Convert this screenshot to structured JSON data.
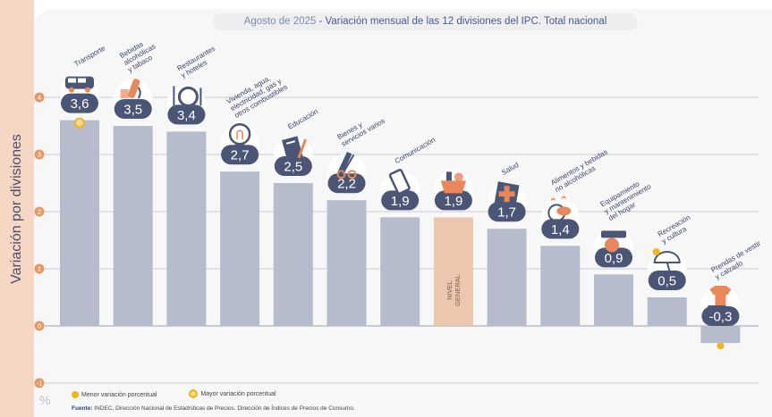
{
  "title": {
    "date": "Agosto de 2025",
    "separator": "-",
    "subtitle": "Variación mensual de las 12 divisiones del IPC. Total nacional"
  },
  "axis": {
    "ylabel": "Variación por divisiones",
    "unit": "%"
  },
  "legend": {
    "min_label": "Menor variación porcentual",
    "max_label": "Mayor variación porcentual"
  },
  "source": {
    "label": "Fuente:",
    "text": "INDEC, Dirección Nacional de Estadísticas de Precios. Dirección de Índices de Precios de Consumo."
  },
  "chart_data": {
    "type": "bar",
    "ylim": [
      -1,
      4
    ],
    "yticks": [
      "-1",
      "0",
      "1",
      "2",
      "3",
      "4"
    ],
    "grid": true,
    "categories": [
      "Transporte",
      "Bebidas alcohólicas y tabaco",
      "Restaurantes y hoteles",
      "Vivienda, agua, electricidad, gas y otros combustibles",
      "Educación",
      "Bienes y servicios varios",
      "Comunicación",
      "NIVEL GENERAL",
      "Salud",
      "Alimentos y bebidas no alcohólicas",
      "Equipamiento y mantenimiento del hogar",
      "Recreación y cultura",
      "Prendas de vestir y calzado"
    ],
    "category_lines": [
      [
        "Transporte"
      ],
      [
        "Bebidas",
        "alcohólicas",
        "y tabaco"
      ],
      [
        "Restaurantes",
        "y hoteles"
      ],
      [
        "Vivienda, agua,",
        "electricidad, gas y",
        "otros combustibles"
      ],
      [
        "Educación"
      ],
      [
        "Bienes y",
        "servicios varios"
      ],
      [
        "Comunicación"
      ],
      [
        "NIVEL",
        "GENERAL"
      ],
      [
        "Salud"
      ],
      [
        "Alimentos y bebidas",
        "no alcohólicas"
      ],
      [
        "Equipamiento",
        "y mantenimiento",
        "del hogar"
      ],
      [
        "Recreación",
        "y cultura"
      ],
      [
        "Prendas de vestir",
        "y calzado"
      ]
    ],
    "values": [
      3.6,
      3.5,
      3.4,
      2.7,
      2.5,
      2.2,
      1.9,
      1.9,
      1.7,
      1.4,
      0.9,
      0.5,
      -0.3
    ],
    "value_labels": [
      "3,6",
      "3,5",
      "3,4",
      "2,7",
      "2,5",
      "2,2",
      "1,9",
      "1,9",
      "1,7",
      "1,4",
      "0,9",
      "0,5",
      "-0,3"
    ],
    "highlight_index": 7,
    "max_index": 0,
    "min_index": 12,
    "icons": [
      "bus-icon",
      "wine-bottle-icon",
      "cutlery-plate-icon",
      "light-bulb-icon",
      "notebook-pencil-icon",
      "comb-scissors-icon",
      "smartphone-icon",
      "shopping-basket-icon",
      "first-aid-cross-icon",
      "bread-basket-icon",
      "air-conditioner-icon",
      "beach-umbrella-icon",
      "t-shirt-shoe-icon"
    ],
    "colors": {
      "bar": "#b6bccb",
      "highlight_bar": "#ecc7ad",
      "badge": "#4b5677",
      "accent": "#e8875a",
      "marker": "#f3b31f",
      "grid": "#c9ccd8"
    }
  }
}
